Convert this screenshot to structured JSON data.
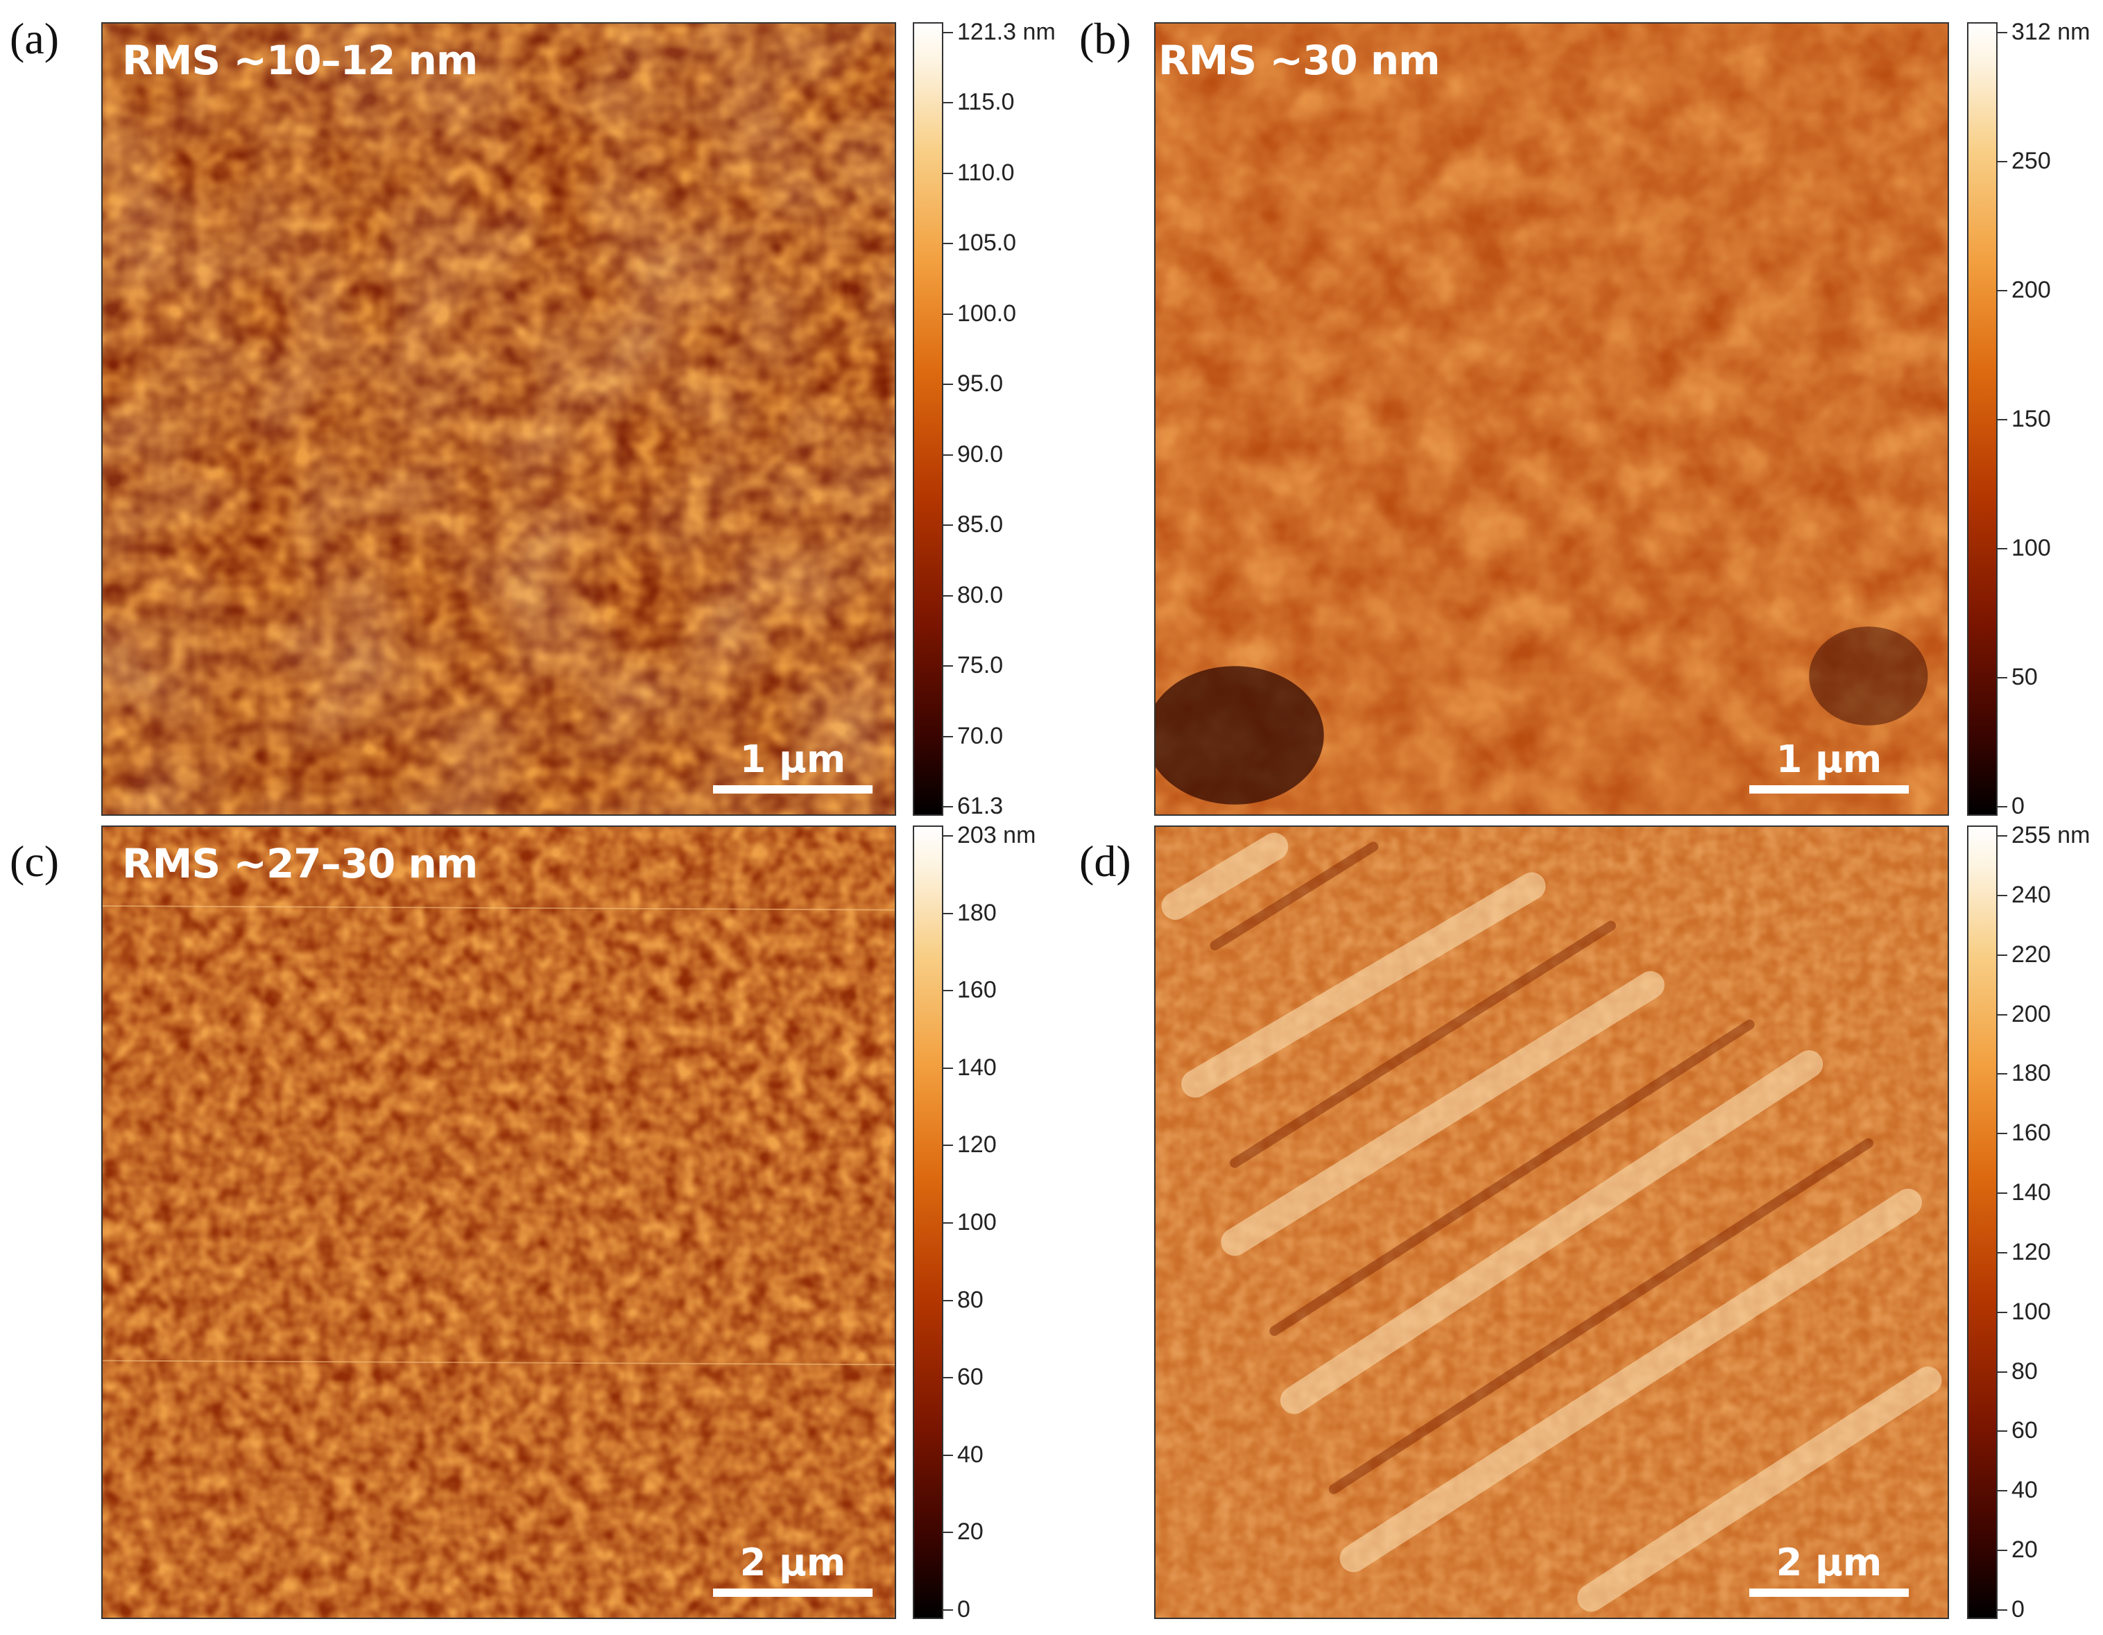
{
  "panels": [
    {
      "letter": "(a)",
      "rms": "RMS ~10–12 nm",
      "scale_bar": "1 μm",
      "colorbar_ticks": [
        "121.3 nm",
        "115.0",
        "110.0",
        "105.0",
        "100.0",
        "95.0",
        "90.0",
        "85.0",
        "80.0",
        "75.0",
        "70.0",
        "61.3"
      ]
    },
    {
      "letter": "(b)",
      "rms": "RMS ~30 nm",
      "scale_bar": "1 μm",
      "colorbar_ticks": [
        "312 nm",
        "250",
        "200",
        "150",
        "100",
        "50",
        "0"
      ]
    },
    {
      "letter": "(c)",
      "rms": "RMS ~27–30 nm",
      "scale_bar": "2 μm",
      "colorbar_ticks": [
        "203 nm",
        "180",
        "160",
        "140",
        "120",
        "100",
        "80",
        "60",
        "40",
        "20",
        "0"
      ]
    },
    {
      "letter": "(d)",
      "rms": "",
      "scale_bar": "2 μm",
      "colorbar_ticks": [
        "255 nm",
        "240",
        "220",
        "200",
        "180",
        "160",
        "140",
        "120",
        "100",
        "80",
        "60",
        "40",
        "20",
        "0"
      ]
    }
  ],
  "colors": {
    "colormap_low": "#000000",
    "colormap_mid": "#dd6a10",
    "colormap_high": "#ffffff"
  }
}
